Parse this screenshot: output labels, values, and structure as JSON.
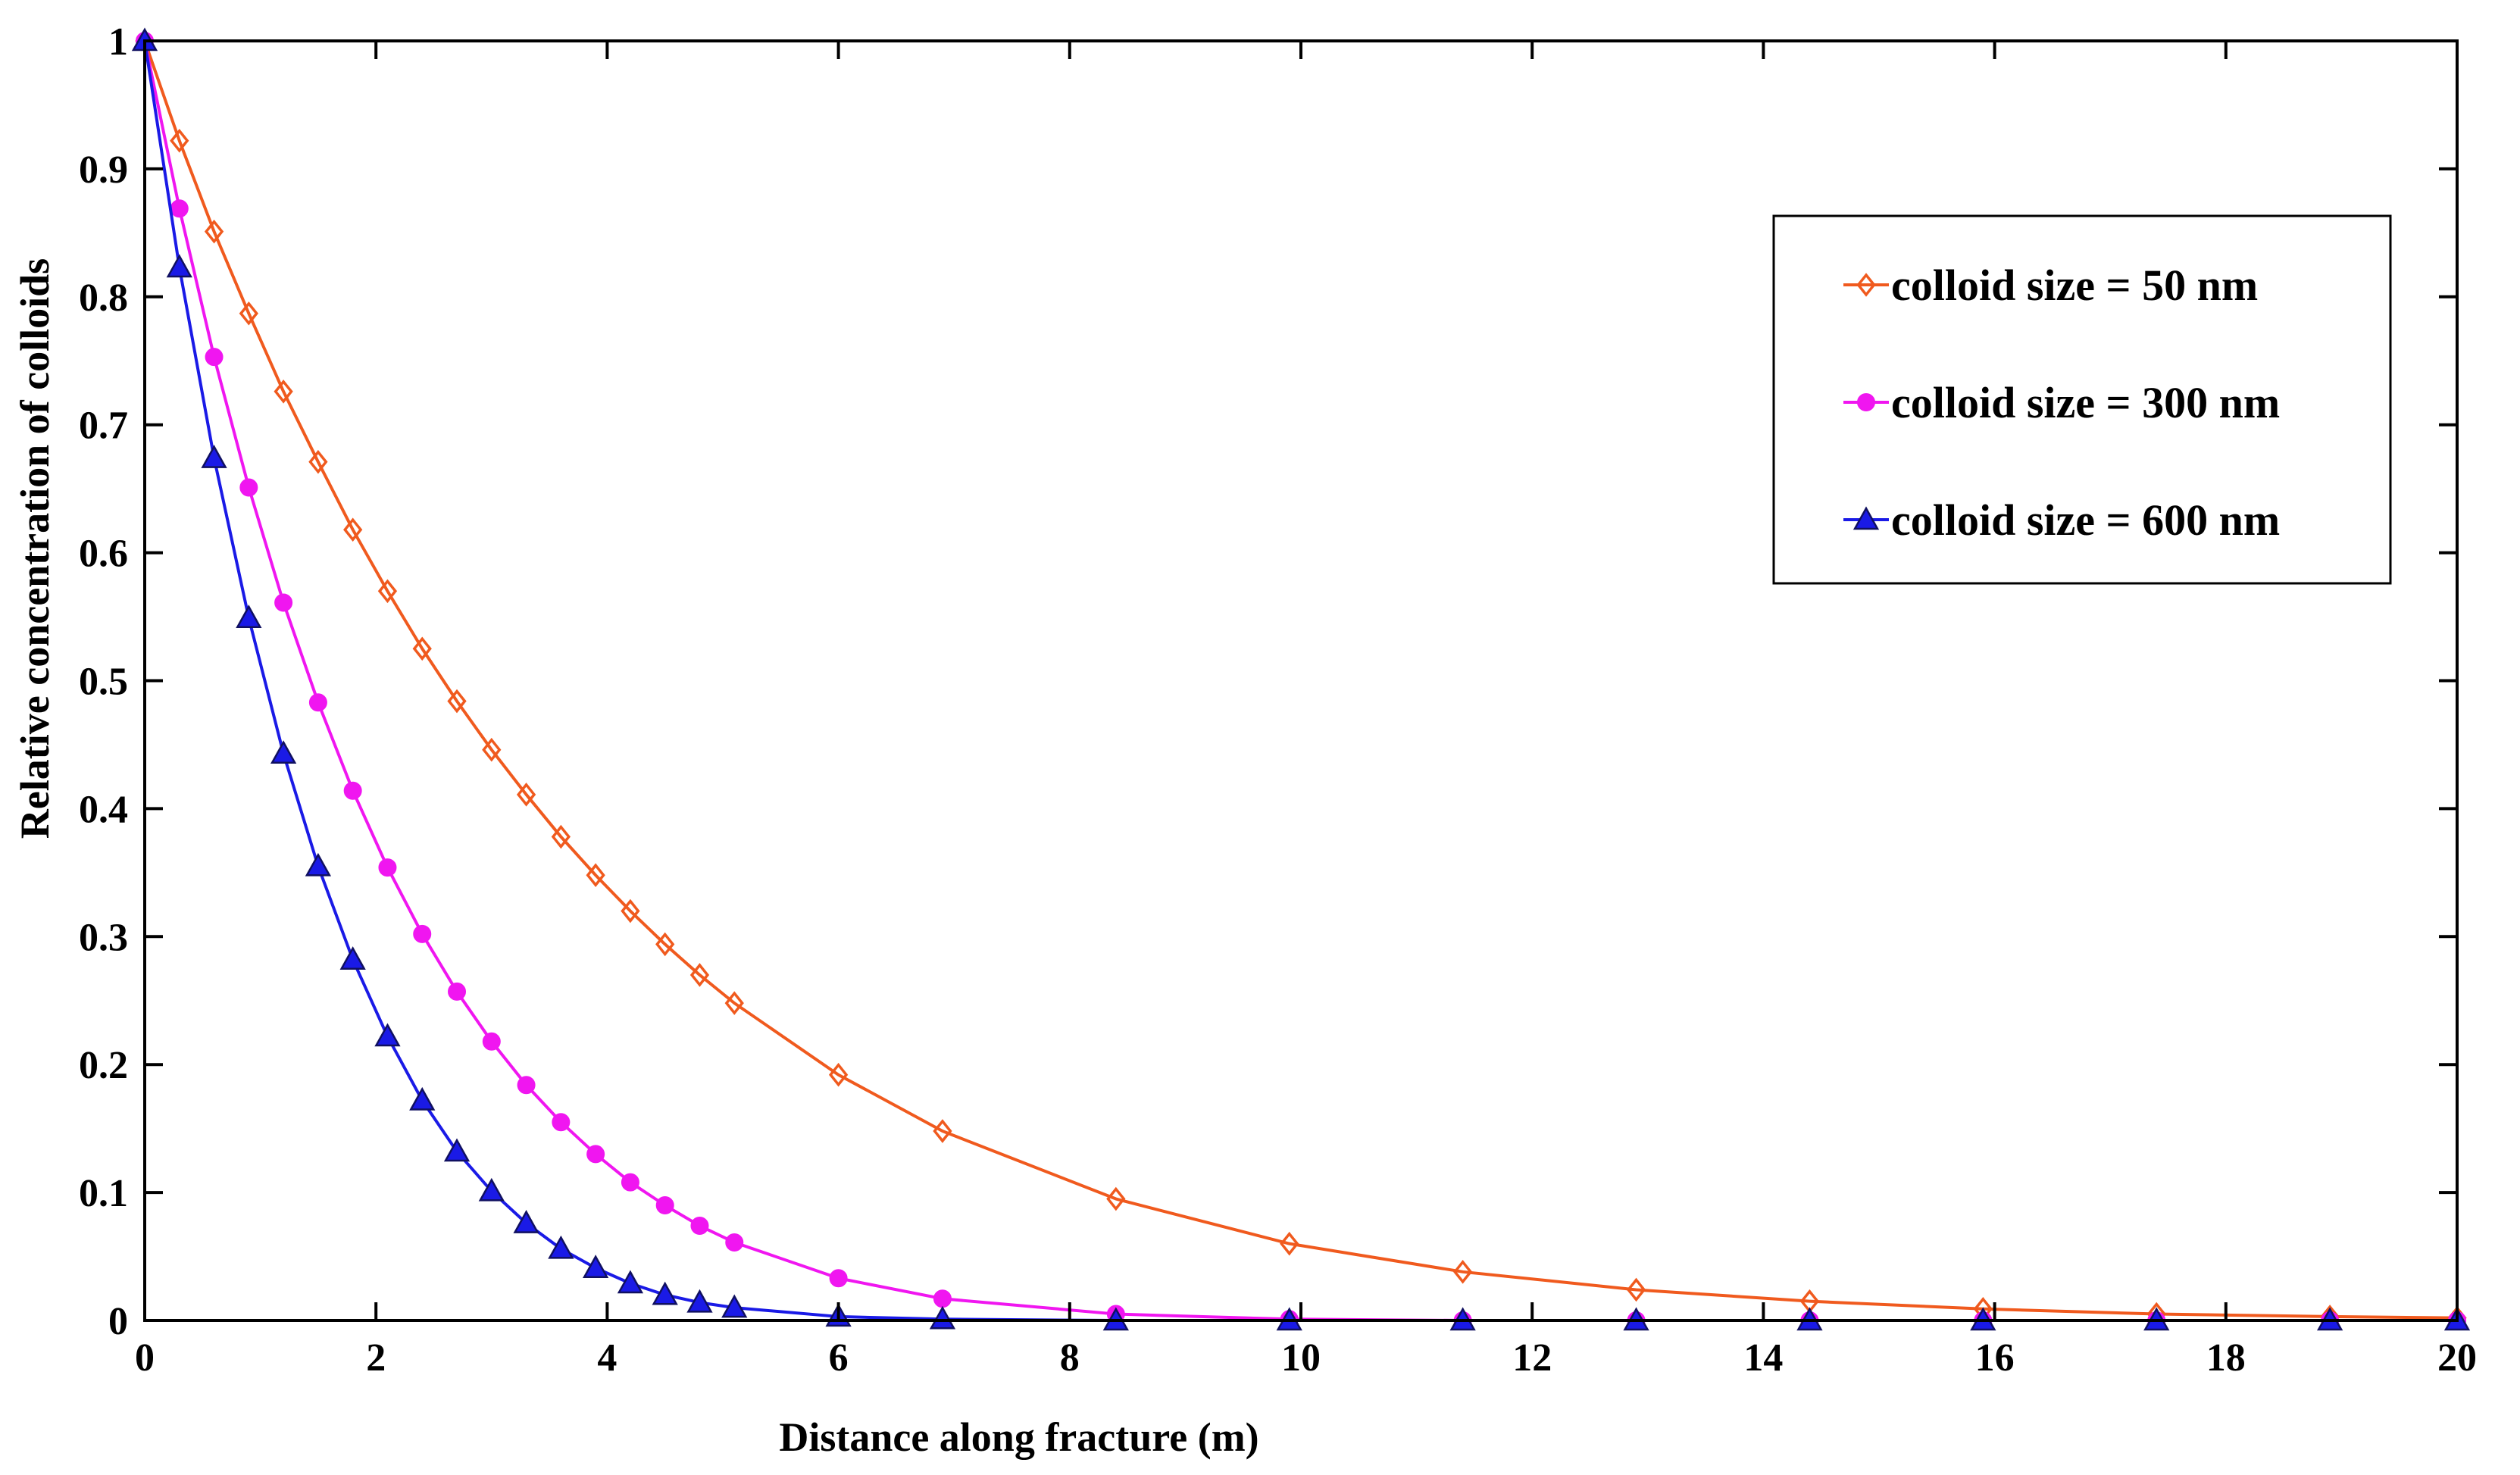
{
  "chart_data": {
    "type": "line",
    "title": "",
    "xlabel": "Distance along fracture (m)",
    "ylabel": "Relative concentration of colloids",
    "xlim": [
      0,
      20
    ],
    "ylim": [
      0,
      1
    ],
    "xticks": [
      0,
      2,
      4,
      6,
      8,
      10,
      12,
      14,
      16,
      18,
      20
    ],
    "yticks": [
      0,
      0.1,
      0.2,
      0.3,
      0.4,
      0.5,
      0.6,
      0.7,
      0.8,
      0.9,
      1
    ],
    "xtick_labels": [
      "0",
      "2",
      "4",
      "6",
      "8",
      "10",
      "12",
      "14",
      "16",
      "18",
      "20"
    ],
    "ytick_labels": [
      "0",
      "0.1",
      "0.2",
      "0.3",
      "0.4",
      "0.5",
      "0.6",
      "0.7",
      "0.8",
      "0.9",
      "1"
    ],
    "grid": false,
    "legend_position": "top-right",
    "series": [
      {
        "name": "colloid size = 50 nm",
        "color": "#f05a1e",
        "marker": "diamond-open",
        "x": [
          0,
          0.3,
          0.6,
          0.9,
          1.2,
          1.5,
          1.8,
          2.1,
          2.4,
          2.7,
          3.0,
          3.3,
          3.6,
          3.9,
          4.2,
          4.5,
          4.8,
          5.1,
          6.0,
          6.9,
          8.4,
          9.9,
          11.4,
          12.9,
          14.4,
          15.9,
          17.4,
          18.9,
          20
        ],
        "y": [
          1.0,
          0.922,
          0.851,
          0.787,
          0.726,
          0.671,
          0.618,
          0.57,
          0.525,
          0.484,
          0.446,
          0.411,
          0.378,
          0.348,
          0.32,
          0.294,
          0.27,
          0.248,
          0.192,
          0.148,
          0.095,
          0.06,
          0.038,
          0.024,
          0.015,
          0.009,
          0.005,
          0.003,
          0.002
        ]
      },
      {
        "name": "colloid size = 300 nm",
        "color": "#f016f0",
        "marker": "circle-filled",
        "x": [
          0,
          0.3,
          0.6,
          0.9,
          1.2,
          1.5,
          1.8,
          2.1,
          2.4,
          2.7,
          3.0,
          3.3,
          3.6,
          3.9,
          4.2,
          4.5,
          4.8,
          5.1,
          6.0,
          6.9,
          8.4,
          9.9,
          11.4,
          12.9,
          14.4,
          15.9,
          17.4,
          18.9,
          20
        ],
        "y": [
          1.0,
          0.869,
          0.753,
          0.651,
          0.561,
          0.483,
          0.414,
          0.354,
          0.302,
          0.257,
          0.218,
          0.184,
          0.155,
          0.13,
          0.108,
          0.09,
          0.074,
          0.061,
          0.033,
          0.017,
          0.005,
          0.001,
          0.0,
          0.0,
          0.0,
          0.0,
          0.0,
          0.0,
          0.0
        ]
      },
      {
        "name": "colloid size = 600 nm",
        "color": "#1a1ae6",
        "marker": "triangle-filled",
        "x": [
          0,
          0.3,
          0.6,
          0.9,
          1.2,
          1.5,
          1.8,
          2.1,
          2.4,
          2.7,
          3.0,
          3.3,
          3.6,
          3.9,
          4.2,
          4.5,
          4.8,
          5.1,
          6.0,
          6.9,
          8.4,
          9.9,
          11.4,
          12.9,
          14.4,
          15.9,
          17.4,
          18.9,
          20
        ],
        "y": [
          1.0,
          0.823,
          0.674,
          0.549,
          0.443,
          0.355,
          0.282,
          0.222,
          0.172,
          0.132,
          0.101,
          0.076,
          0.056,
          0.041,
          0.029,
          0.02,
          0.014,
          0.01,
          0.003,
          0.001,
          0.0,
          0.0,
          0.0,
          0.0,
          0.0,
          0.0,
          0.0,
          0.0,
          0.0
        ]
      }
    ]
  }
}
